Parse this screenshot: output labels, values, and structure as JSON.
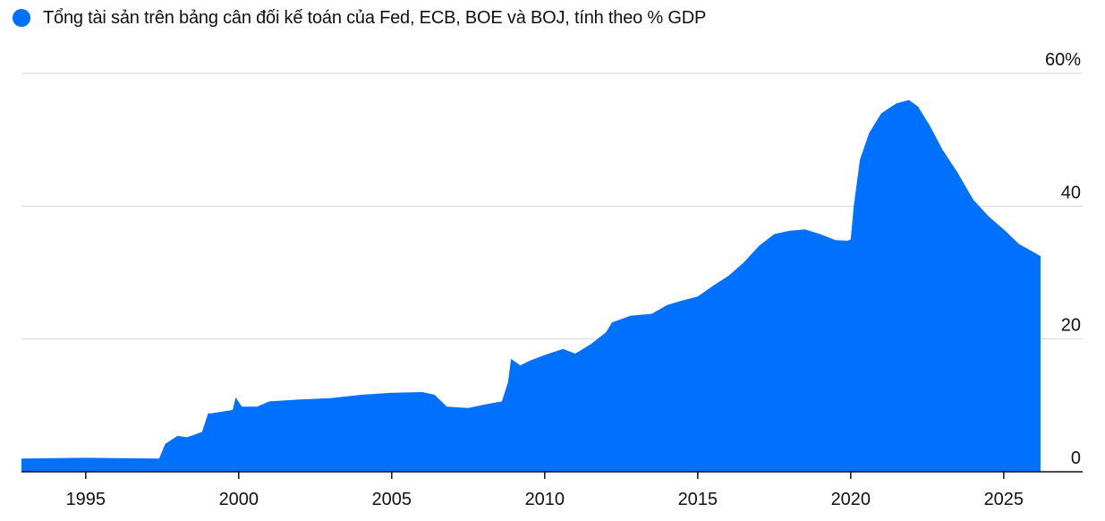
{
  "chart_data": {
    "type": "area",
    "title": "",
    "xlabel": "",
    "ylabel": "",
    "legend_placement": "top-left",
    "grid": true,
    "series": [
      {
        "name": "Tổng tài sản trên bảng cân đối kế toán của Fed, ECB, BOE và BOJ, tính theo % GDP",
        "color": "#0070FF",
        "x": [
          1992.9,
          1995.0,
          1997.4,
          1997.6,
          1998.0,
          1998.3,
          1998.5,
          1998.8,
          1999.0,
          1999.1,
          1999.8,
          1999.9,
          2000.1,
          2000.6,
          2001.0,
          2002.0,
          2003.0,
          2004.0,
          2005.0,
          2006.0,
          2006.4,
          2006.8,
          2007.5,
          2008.0,
          2008.6,
          2008.8,
          2008.9,
          2009.2,
          2009.5,
          2010.0,
          2010.6,
          2011.0,
          2011.5,
          2012.0,
          2012.2,
          2012.8,
          2013.5,
          2014.0,
          2014.5,
          2015.0,
          2015.5,
          2016.0,
          2016.5,
          2017.0,
          2017.5,
          2018.0,
          2018.5,
          2019.0,
          2019.5,
          2019.9,
          2020.0,
          2020.1,
          2020.3,
          2020.6,
          2021.0,
          2021.5,
          2021.9,
          2022.2,
          2022.6,
          2023.0,
          2023.5,
          2024.0,
          2024.5,
          2025.0,
          2025.5,
          2026.2
        ],
        "y": [
          2.0,
          2.1,
          2.0,
          4.2,
          5.4,
          5.2,
          5.5,
          6.0,
          8.8,
          8.8,
          9.3,
          11.2,
          9.8,
          9.8,
          10.6,
          10.9,
          11.1,
          11.6,
          11.9,
          12.0,
          11.6,
          9.8,
          9.6,
          10.1,
          10.6,
          13.5,
          17.0,
          16.0,
          16.7,
          17.6,
          18.5,
          17.8,
          19.2,
          21.0,
          22.5,
          23.5,
          23.8,
          25.1,
          25.8,
          26.4,
          28.0,
          29.5,
          31.5,
          34.0,
          35.8,
          36.3,
          36.5,
          35.8,
          34.9,
          34.8,
          35.0,
          40.0,
          47.0,
          51.0,
          54.0,
          55.5,
          56.0,
          55.0,
          52.0,
          48.5,
          45.0,
          41.0,
          38.5,
          36.5,
          34.3,
          32.5
        ]
      }
    ],
    "x_range": [
      1992.9,
      2026.5
    ],
    "ylim": [
      0,
      60
    ],
    "x_ticks": [
      {
        "value": 1995,
        "label": "1995"
      },
      {
        "value": 2000,
        "label": "2000"
      },
      {
        "value": 2005,
        "label": "2005"
      },
      {
        "value": 2010,
        "label": "2010"
      },
      {
        "value": 2015,
        "label": "2015"
      },
      {
        "value": 2020,
        "label": "2020"
      },
      {
        "value": 2025,
        "label": "2025"
      }
    ],
    "y_ticks": [
      {
        "value": 0,
        "label": "0"
      },
      {
        "value": 20,
        "label": "20"
      },
      {
        "value": 40,
        "label": "40"
      },
      {
        "value": 60,
        "label": "60%"
      }
    ],
    "colors": {
      "gridline": "#D6D6D6",
      "axis": "#111111"
    }
  }
}
